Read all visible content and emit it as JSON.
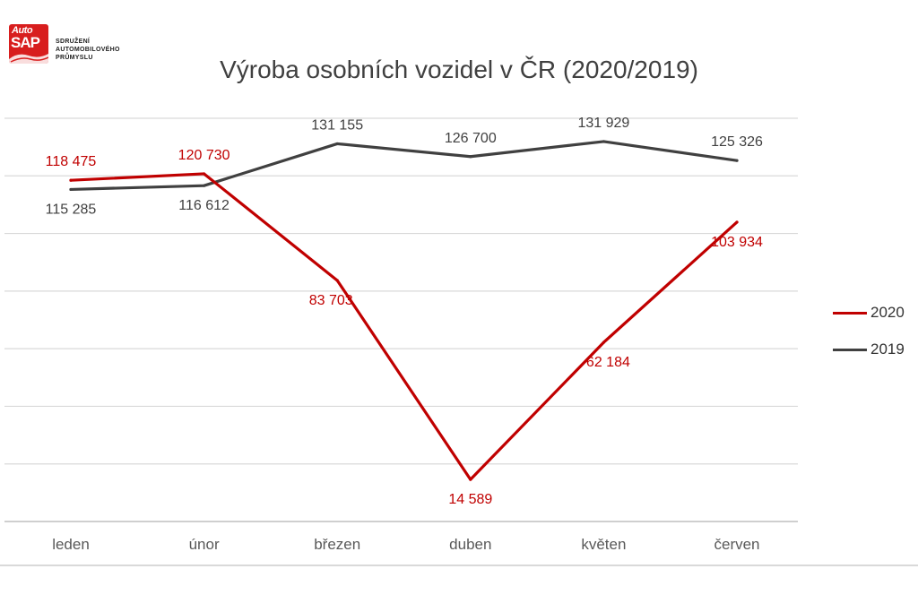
{
  "logo": {
    "badge_top": "Auto",
    "badge_main": "SAP",
    "org_lines": [
      "SDRUŽENÍ",
      "AUTOMOBILOVÉHO",
      "PRŮMYSLU"
    ]
  },
  "chart_data": {
    "type": "line",
    "title": "Výroba osobních vozidel v ČR (2020/2019)",
    "xlabel": "",
    "ylabel": "",
    "categories": [
      "leden",
      "únor",
      "březen",
      "duben",
      "květen",
      "červen"
    ],
    "series": [
      {
        "name": "2020",
        "color": "#c00000",
        "values": [
          118475,
          120730,
          83703,
          14589,
          62184,
          103934
        ],
        "labels": [
          "118 475",
          "120 730",
          "83 703",
          "14 589",
          "62 184",
          "103 934"
        ]
      },
      {
        "name": "2019",
        "color": "#404040",
        "values": [
          115285,
          116612,
          131155,
          126700,
          131929,
          125326
        ],
        "labels": [
          "115 285",
          "116 612",
          "131 155",
          "126 700",
          "131 929",
          "125 326"
        ]
      }
    ],
    "ylim": [
      0,
      140000
    ],
    "grid": true,
    "legend_position": "right",
    "y_tick_labels_shown": false
  }
}
